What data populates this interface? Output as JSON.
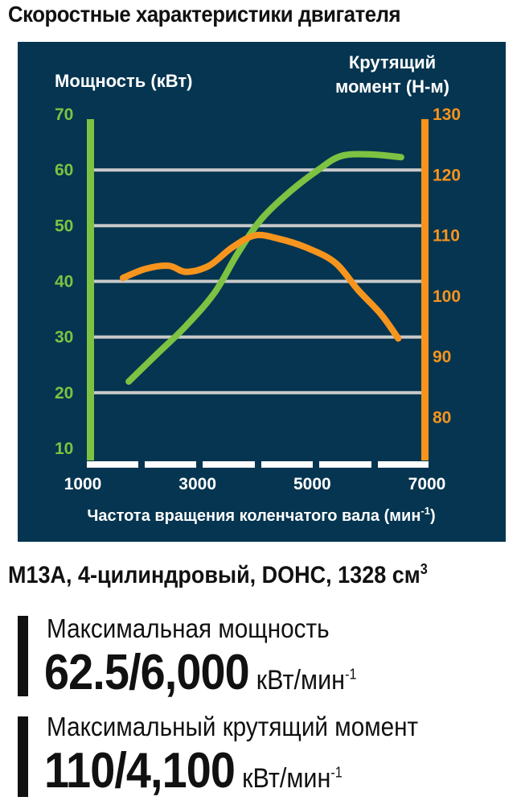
{
  "title": "Скоростные характеристики двигателя",
  "chart_data": {
    "type": "line",
    "xlabel": "Частота вращения коленчатого вала (мин",
    "xlabel_sup": "-1",
    "x_ticks": [
      "1000",
      "3000",
      "5000",
      "7000"
    ],
    "xlim": [
      1000,
      7000
    ],
    "y_left": {
      "label": "Мощность (кВт)",
      "ticks": [
        "70",
        "60",
        "50",
        "40",
        "30",
        "20",
        "10"
      ],
      "range": [
        10,
        70
      ],
      "color": "#7dc242"
    },
    "y_right": {
      "label_line1": "Крутящий",
      "label_line2": "момент (Н-м)",
      "ticks": [
        "130",
        "120",
        "110",
        "100",
        "90",
        "80"
      ],
      "range": [
        73,
        130
      ],
      "color": "#f7941d"
    },
    "grid": true,
    "series": [
      {
        "axis": "left",
        "color": "#7dc242",
        "points": [
          [
            1800,
            22
          ],
          [
            2300,
            27
          ],
          [
            2800,
            32
          ],
          [
            3300,
            38
          ],
          [
            3700,
            45
          ],
          [
            4100,
            51
          ],
          [
            4600,
            56
          ],
          [
            5100,
            60
          ],
          [
            5500,
            62.5
          ],
          [
            6000,
            62.8
          ],
          [
            6550,
            62.3
          ]
        ]
      },
      {
        "axis": "right",
        "color": "#f7941d",
        "points": [
          [
            1700,
            103
          ],
          [
            2100,
            104.5
          ],
          [
            2500,
            105
          ],
          [
            2800,
            104
          ],
          [
            3200,
            105
          ],
          [
            3600,
            108
          ],
          [
            4000,
            110
          ],
          [
            4400,
            109.5
          ],
          [
            4900,
            108
          ],
          [
            5400,
            105.5
          ],
          [
            5800,
            101
          ],
          [
            6200,
            97
          ],
          [
            6500,
            93
          ]
        ]
      }
    ]
  },
  "engine_spec": {
    "text": "M13A, 4-цилиндровый, DOHC, 1328 см",
    "sup": "3"
  },
  "max_power": {
    "label": "Максимальная мощность",
    "value": "62.5/6,000",
    "unit": "кВт/мин",
    "unit_sup": "-1"
  },
  "max_torque": {
    "label": "Максимальный крутящий момент",
    "value": "110/4,100",
    "unit": "кВт/мин",
    "unit_sup": "-1"
  }
}
